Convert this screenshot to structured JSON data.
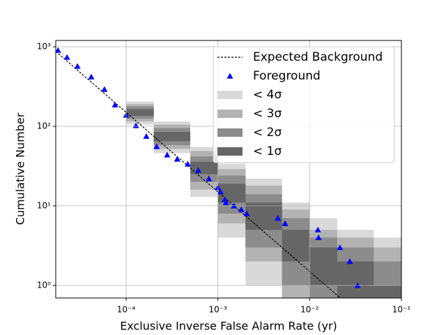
{
  "chart_data": {
    "type": "scatter",
    "xlabel": "Exclusive Inverse False Alarm Rate (yr)",
    "ylabel": "Cumulative Number",
    "xscale": "log",
    "yscale": "log",
    "xlim": [
      1.71e-05,
      0.1
    ],
    "ylim": [
      0.695,
      1200
    ],
    "xticks": [
      {
        "value": 0.0001,
        "label": "10⁻⁴"
      },
      {
        "value": 0.001,
        "label": "10⁻³"
      },
      {
        "value": 0.01,
        "label": "10⁻²"
      },
      {
        "value": 0.1,
        "label": "10⁻¹"
      }
    ],
    "yticks": [
      {
        "value": 1,
        "label": "10⁰"
      },
      {
        "value": 10,
        "label": "10¹"
      },
      {
        "value": 100,
        "label": "10²"
      },
      {
        "value": 1000,
        "label": "10³"
      }
    ],
    "grid": true,
    "legend_loc": "upper right",
    "expected": {
      "name": "Expected Background",
      "color": "#000000",
      "x": [
        1.71e-05,
        0.021
      ],
      "values": [
        877,
        0.714
      ]
    },
    "series": [
      {
        "name": "Foreground",
        "color": "#0000ff",
        "x": [
          1.81e-05,
          2.27e-05,
          2.95e-05,
          4.17e-05,
          5.8e-05,
          7.56e-05,
          0.0001,
          0.000128,
          0.000166,
          0.000215,
          0.00028,
          0.00036,
          0.00047,
          0.00061,
          0.000796,
          0.001,
          0.00107,
          0.00119,
          0.00123,
          0.0015,
          0.0018,
          0.00206,
          0.0045,
          0.0054,
          0.0123,
          0.0125,
          0.0214,
          0.0274,
          0.0333
        ],
        "values": [
          903,
          738,
          568,
          419,
          292,
          186,
          138,
          102,
          75,
          55.7,
          43.7,
          38.7,
          33.6,
          28,
          22,
          17,
          15,
          12,
          11,
          10,
          9,
          8,
          7,
          6,
          5,
          4,
          3,
          2,
          1
        ]
      }
    ],
    "bands_x": [
      0.0001,
      0.0002,
      0.0005,
      0.001,
      0.002,
      0.005,
      0.01,
      0.02,
      0.05,
      0.1
    ],
    "bands": [
      {
        "name": "< 4σ",
        "color": "#d9d9d9",
        "lower": [
          105,
          46,
          13,
          4,
          1,
          0,
          0,
          0,
          0,
          0
        ],
        "upper": [
          205,
          115,
          55,
          34,
          22,
          11,
          7,
          5,
          4,
          4
        ]
      },
      {
        "name": "< 3σ",
        "color": "#b3b3b3",
        "lower": [
          115,
          52,
          16,
          6,
          2,
          0,
          0,
          0,
          0,
          0
        ],
        "upper": [
          190,
          105,
          49,
          29,
          18,
          9,
          5,
          4,
          3,
          3
        ]
      },
      {
        "name": "< 2σ",
        "color": "#8c8c8c",
        "lower": [
          125,
          58,
          20,
          8,
          3,
          1,
          0,
          0,
          0,
          0
        ],
        "upper": [
          178,
          95,
          42,
          24,
          14,
          7,
          4,
          3,
          2,
          2
        ]
      },
      {
        "name": "< 1σ",
        "color": "#666666",
        "lower": [
          135,
          65,
          25,
          11,
          5,
          2,
          1,
          0,
          0,
          0
        ],
        "upper": [
          165,
          85,
          36,
          19,
          11,
          5,
          3,
          2,
          1,
          1
        ]
      }
    ]
  }
}
